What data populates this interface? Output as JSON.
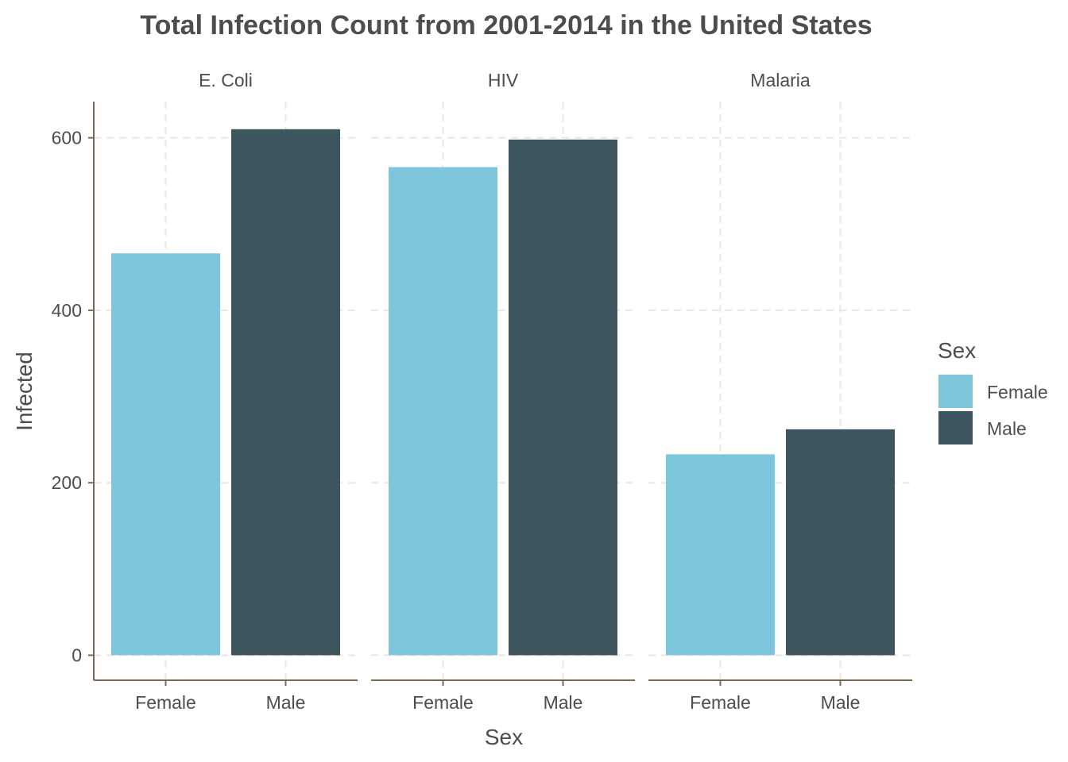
{
  "chart_data": {
    "type": "bar",
    "title": "Total Infection Count from 2001-2014 in the United States",
    "xlabel": "Sex",
    "ylabel": "Infected",
    "ylim": [
      -29,
      642
    ],
    "yticks": [
      0,
      200,
      400,
      600
    ],
    "grid": true,
    "categories": [
      "Female",
      "Male"
    ],
    "facets": [
      {
        "label": "E. Coli",
        "values": [
          466,
          610
        ]
      },
      {
        "label": "HIV",
        "values": [
          566,
          598
        ]
      },
      {
        "label": "Malaria",
        "values": [
          233,
          262
        ]
      }
    ],
    "legend": {
      "title": "Sex",
      "position": "right",
      "entries": [
        {
          "label": "Female",
          "color": "#7ec6dc"
        },
        {
          "label": "Male",
          "color": "#3d555d"
        }
      ]
    }
  }
}
